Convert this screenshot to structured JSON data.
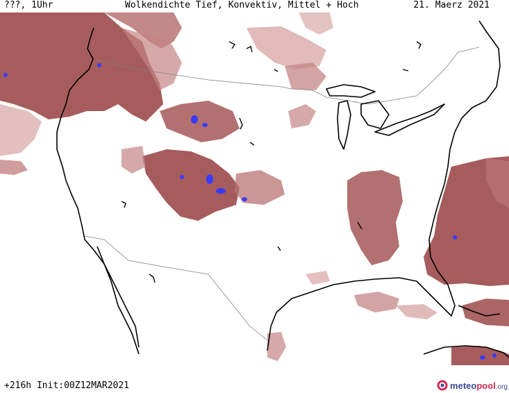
{
  "header": {
    "left": "???, 1Uhr",
    "center": "Wolkendichte  Tief, Konvektiv, Mittel + Hoch",
    "right": "21. Maerz 2021"
  },
  "footer": {
    "left": "+216h Init:00Z12MAR2021",
    "brand_meteo": "meteo",
    "brand_pool": "pool",
    "brand_org": ".org"
  },
  "colors": {
    "cloud_dense": "#9c4a4a",
    "cloud_mid": "#b97373",
    "cloud_light": "#d9a9a9",
    "convective": "#3a3aff",
    "coast": "#000000",
    "border": "#808080"
  },
  "icons": {
    "brand_logo": "meteopool-logo-icon"
  }
}
